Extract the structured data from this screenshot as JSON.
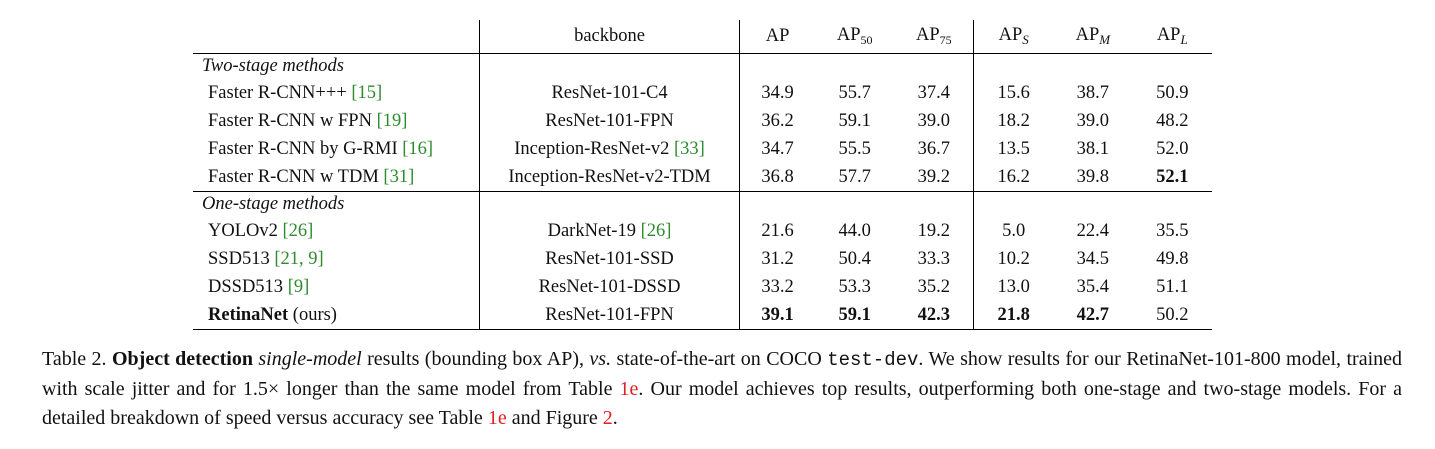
{
  "table": {
    "headers": {
      "backbone": "backbone",
      "ap": "AP",
      "ap50_base": "AP",
      "ap50_sub": "50",
      "ap75_base": "AP",
      "ap75_sub": "75",
      "aps_base": "AP",
      "aps_sub": "S",
      "apm_base": "AP",
      "apm_sub": "M",
      "apl_base": "AP",
      "apl_sub": "L"
    },
    "sections": [
      {
        "label": "Two-stage methods",
        "rows": [
          {
            "method": "Faster R-CNN+++ ",
            "method_cite": "[15]",
            "backbone": "ResNet-101-C4",
            "backbone_cite": "",
            "ap": "34.9",
            "ap50": "55.7",
            "ap75": "37.4",
            "aps": "15.6",
            "apm": "38.7",
            "apl": "50.9"
          },
          {
            "method": "Faster R-CNN w FPN ",
            "method_cite": "[19]",
            "backbone": "ResNet-101-FPN",
            "backbone_cite": "",
            "ap": "36.2",
            "ap50": "59.1",
            "ap75": "39.0",
            "aps": "18.2",
            "apm": "39.0",
            "apl": "48.2"
          },
          {
            "method": "Faster R-CNN by G-RMI ",
            "method_cite": "[16]",
            "backbone": "Inception-ResNet-v2 ",
            "backbone_cite": "[33]",
            "ap": "34.7",
            "ap50": "55.5",
            "ap75": "36.7",
            "aps": "13.5",
            "apm": "38.1",
            "apl": "52.0"
          },
          {
            "method": "Faster R-CNN w TDM ",
            "method_cite": "[31]",
            "backbone": "Inception-ResNet-v2-TDM",
            "backbone_cite": "",
            "ap": "36.8",
            "ap50": "57.7",
            "ap75": "39.2",
            "aps": "16.2",
            "apm": "39.8",
            "apl": "52.1"
          }
        ]
      },
      {
        "label": "One-stage methods",
        "rows": [
          {
            "method": "YOLOv2 ",
            "method_cite": "[26]",
            "backbone": "DarkNet-19 ",
            "backbone_cite": "[26]",
            "ap": "21.6",
            "ap50": "44.0",
            "ap75": "19.2",
            "aps": "5.0",
            "apm": "22.4",
            "apl": "35.5"
          },
          {
            "method": "SSD513 ",
            "method_cite": "[21, 9]",
            "backbone": "ResNet-101-SSD",
            "backbone_cite": "",
            "ap": "31.2",
            "ap50": "50.4",
            "ap75": "33.3",
            "aps": "10.2",
            "apm": "34.5",
            "apl": "49.8"
          },
          {
            "method": "DSSD513 ",
            "method_cite": "[9]",
            "backbone": "ResNet-101-DSSD",
            "backbone_cite": "",
            "ap": "33.2",
            "ap50": "53.3",
            "ap75": "35.2",
            "aps": "13.0",
            "apm": "35.4",
            "apl": "51.1"
          },
          {
            "method_bold": "RetinaNet",
            "method": " (ours)",
            "backbone": "ResNet-101-FPN",
            "ap": "39.1",
            "ap50": "59.1",
            "ap75": "42.3",
            "aps": "21.8",
            "apm": "42.7",
            "apl": "50.2"
          }
        ]
      }
    ]
  },
  "caption": {
    "label": "Table 2. ",
    "bold_phrase": "Object detection",
    "italic_phrase": "single-model",
    "text1": " results (bounding box AP), ",
    "italic_vs": "vs.",
    "text2": " state-of-the-art on COCO ",
    "mono_split": "test-dev",
    "text3": ".  We show results for our RetinaNet-101-800 model, trained with scale jitter and for 1.5× longer than the same model from Table ",
    "ref1": "1e",
    "text4": ". Our model achieves top results, outperforming both one-stage and two-stage models. For a detailed breakdown of speed versus accuracy see Table ",
    "ref2": "1e",
    "text5": " and Figure ",
    "ref3": "2",
    "text6": "."
  }
}
